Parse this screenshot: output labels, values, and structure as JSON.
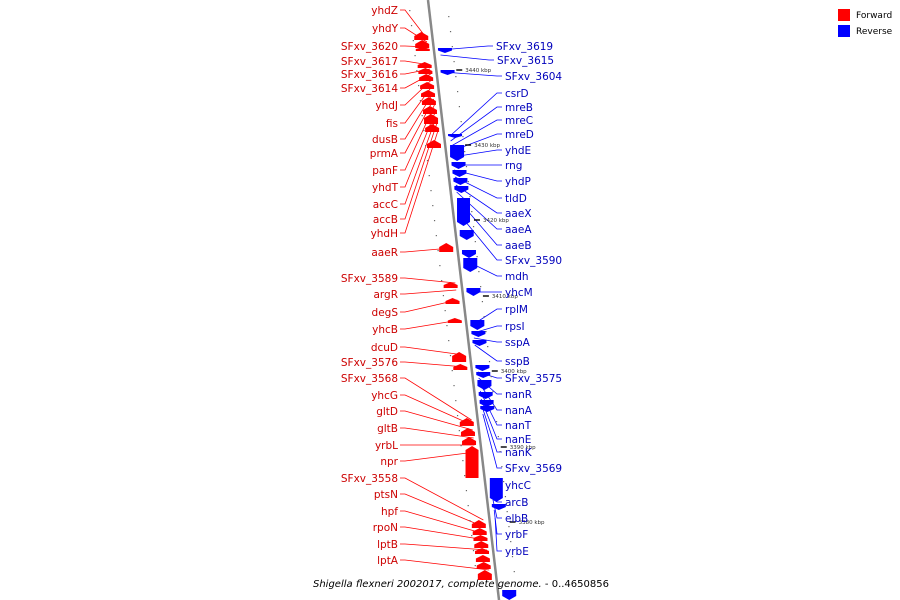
{
  "caption": {
    "organism": "Shigella flexneri 2002017, complete genome.",
    "range": " - 0..4650856"
  },
  "legend": [
    {
      "label": "Forward",
      "color": "#ff0000"
    },
    {
      "label": "Reverse",
      "color": "#0000ff"
    }
  ],
  "colors": {
    "forward": "#ff0000",
    "reverse": "#0000ff",
    "backbone": "#888888",
    "forward_text": "#cc0000",
    "reverse_text": "#0000bb"
  },
  "ticks": [
    "3440 kbp",
    "3430 kbp",
    "3420 kbp",
    "3410 kbp",
    "3400 kbp",
    "3390 kbp",
    "3380 kbp"
  ],
  "forward_genes": [
    "yhdZ",
    "yhdY",
    "SFxv_3620",
    "SFxv_3617",
    "SFxv_3616",
    "SFxv_3614",
    "yhdJ",
    "fis",
    "dusB",
    "prmA",
    "panF",
    "yhdT",
    "accC",
    "accB",
    "yhdH",
    "aaeR",
    "SFxv_3589",
    "argR",
    "degS",
    "yhcB",
    "dcuD",
    "SFxv_3576",
    "SFxv_3568",
    "yhcG",
    "gltD",
    "gltB",
    "yrbL",
    "npr",
    "SFxv_3558",
    "ptsN",
    "hpf",
    "rpoN",
    "lptB",
    "lptA"
  ],
  "reverse_genes": [
    "SFxv_3619",
    "SFxv_3615",
    "SFxv_3604",
    "csrD",
    "mreB",
    "mreC",
    "mreD",
    "yhdE",
    "rng",
    "yhdP",
    "tldD",
    "aaeX",
    "aaeA",
    "aaeB",
    "SFxv_3590",
    "mdh",
    "yhcM",
    "rplM",
    "rpsI",
    "sspA",
    "sspB",
    "SFxv_3575",
    "nanR",
    "nanA",
    "nanT",
    "nanE",
    "nanK",
    "SFxv_3569",
    "yhcC",
    "arcB",
    "elbB",
    "yrbF",
    "yrbE"
  ]
}
